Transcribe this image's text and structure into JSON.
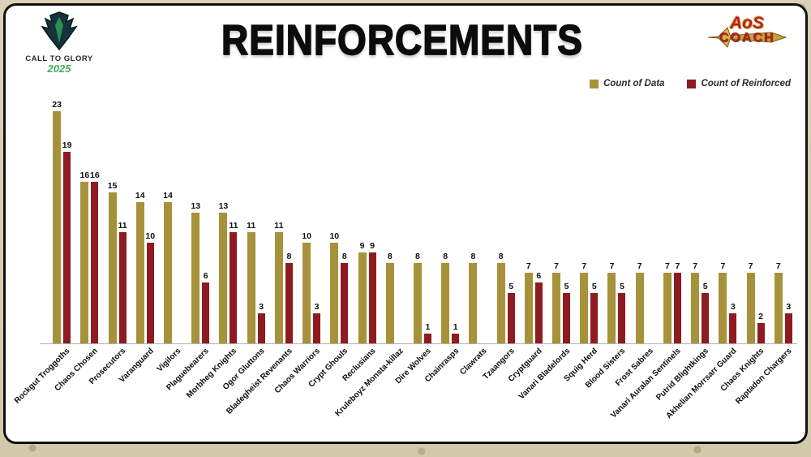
{
  "header": {
    "title": "REINFORCEMENTS",
    "left_logo": {
      "title": "CALL TO GLORY",
      "year": "2025"
    },
    "right_logo": {
      "line1": "AoS",
      "line2": "COACH"
    }
  },
  "chart_data": {
    "type": "bar",
    "title": "REINFORCEMENTS",
    "xlabel": "",
    "ylabel": "",
    "ylim": [
      0,
      24
    ],
    "grid": false,
    "legend_position": "top-right",
    "categories": [
      "Rockgut Troggoths",
      "Chaos Chosen",
      "Prosecutors",
      "Varanguard",
      "Vigilors",
      "Plaguebearers",
      "Morbheg Knights",
      "Ogor Gluttons",
      "Bladegheist Revenants",
      "Chaos Warriors",
      "Crypt Ghouls",
      "Reclusians",
      "Kruleboyz Monsta-killaz",
      "Dire Wolves",
      "Chainrasps",
      "Clawrats",
      "Tzaangors",
      "Cryptguard",
      "Vanari Bladelords",
      "Squig Herd",
      "Blood Sisters",
      "Frost Sabres",
      "Vanari Auralan Sentinels",
      "Putrid Blightkings",
      "Akhelian Morrsarr Guard",
      "Chaos Knights",
      "Raptadon Chargers"
    ],
    "series": [
      {
        "name": "Count of Data",
        "color": "#A6923A",
        "values": [
          23,
          16,
          15,
          14,
          14,
          13,
          13,
          11,
          11,
          10,
          10,
          9,
          8,
          8,
          8,
          8,
          8,
          7,
          7,
          7,
          7,
          7,
          7,
          7,
          7,
          7,
          7
        ]
      },
      {
        "name": "Count of Reinforced",
        "color": "#8E1B21",
        "values": [
          19,
          16,
          11,
          10,
          null,
          6,
          11,
          3,
          8,
          3,
          8,
          9,
          null,
          1,
          1,
          null,
          5,
          6,
          5,
          5,
          5,
          null,
          7,
          5,
          3,
          2,
          3
        ]
      }
    ]
  }
}
